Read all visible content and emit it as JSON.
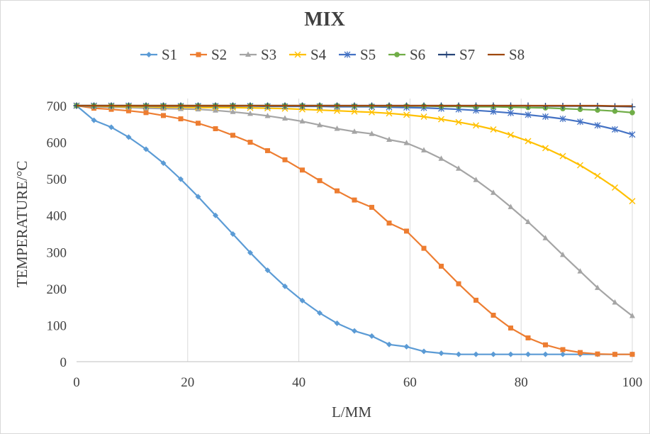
{
  "chart_data": {
    "type": "line",
    "title": "MIX",
    "xlabel": "L/MM",
    "ylabel": "TEMPERATURE/°C",
    "xlim": [
      0,
      100
    ],
    "ylim": [
      0,
      700
    ],
    "xticks": [
      "0",
      "20",
      "40",
      "60",
      "80",
      "100"
    ],
    "yticks": [
      "0",
      "100",
      "200",
      "300",
      "400",
      "500",
      "600",
      "700"
    ],
    "grid": "vertical",
    "legend": "top",
    "x": [
      0,
      3.125,
      6.25,
      9.375,
      12.5,
      15.625,
      18.75,
      21.875,
      25,
      28.125,
      31.25,
      34.375,
      37.5,
      40.625,
      43.75,
      46.875,
      50,
      53.125,
      56.25,
      59.375,
      62.5,
      65.625,
      68.75,
      71.875,
      75,
      78.125,
      81.25,
      84.375,
      87.5,
      90.625,
      93.75,
      96.875,
      100
    ],
    "series": [
      {
        "name": "S1",
        "color": "#5b9bd5",
        "marker": "diamond",
        "values": [
          700,
          660,
          641,
          614,
          581,
          543,
          499,
          451,
          400,
          349,
          298,
          250,
          206,
          167,
          133,
          105,
          84,
          70,
          47,
          41,
          28,
          23,
          20,
          20,
          20,
          20,
          20,
          20,
          20,
          20,
          20,
          20,
          20
        ]
      },
      {
        "name": "S2",
        "color": "#ed7d31",
        "marker": "square",
        "values": [
          700,
          693,
          690,
          686,
          681,
          673,
          664,
          652,
          637,
          619,
          600,
          577,
          552,
          524,
          495,
          467,
          442,
          422,
          379,
          357,
          310,
          261,
          213,
          168,
          127,
          92,
          65,
          46,
          33,
          25,
          21,
          20,
          20
        ]
      },
      {
        "name": "S3",
        "color": "#a5a5a5",
        "marker": "triangle",
        "values": [
          700,
          697,
          696,
          695,
          693,
          692,
          691,
          690,
          687,
          683,
          678,
          672,
          665,
          657,
          647,
          637,
          629,
          623,
          607,
          598,
          578,
          555,
          528,
          497,
          462,
          423,
          382,
          338,
          292,
          247,
          202,
          162,
          125
        ]
      },
      {
        "name": "S4",
        "color": "#ffc000",
        "marker": "x",
        "values": [
          700,
          699,
          698,
          697,
          697,
          696,
          696,
          695,
          695,
          695,
          694,
          693,
          692,
          690,
          688,
          686,
          684,
          682,
          679,
          675,
          670,
          663,
          655,
          646,
          635,
          620,
          603,
          584,
          562,
          537,
          508,
          476,
          439
        ]
      },
      {
        "name": "S5",
        "color": "#4472c4",
        "marker": "asterisk",
        "values": [
          700,
          700,
          700,
          700,
          699,
          699,
          699,
          699,
          699,
          699,
          699,
          698,
          698,
          698,
          698,
          697,
          697,
          697,
          696,
          695,
          694,
          692,
          690,
          687,
          684,
          680,
          675,
          670,
          664,
          656,
          646,
          635,
          621
        ]
      },
      {
        "name": "S6",
        "color": "#70ad47",
        "marker": "circle",
        "values": [
          700,
          700,
          700,
          700,
          700,
          700,
          700,
          700,
          700,
          700,
          700,
          700,
          700,
          700,
          700,
          700,
          699,
          699,
          699,
          699,
          699,
          698,
          698,
          697,
          697,
          696,
          695,
          694,
          692,
          690,
          688,
          685,
          681
        ]
      },
      {
        "name": "S7",
        "color": "#264478",
        "marker": "plus",
        "values": [
          700,
          700,
          700,
          700,
          700,
          700,
          700,
          700,
          700,
          700,
          700,
          700,
          700,
          700,
          700,
          700,
          700,
          700,
          700,
          700,
          700,
          700,
          700,
          700,
          700,
          700,
          700,
          699,
          699,
          699,
          699,
          698,
          697
        ]
      },
      {
        "name": "S8",
        "color": "#9e480e",
        "marker": "none",
        "values": [
          700,
          700,
          700,
          700,
          700,
          700,
          700,
          700,
          700,
          700,
          700,
          700,
          700,
          700,
          700,
          700,
          700,
          700,
          700,
          700,
          700,
          700,
          700,
          700,
          700,
          700,
          700,
          700,
          700,
          700,
          700,
          699,
          699
        ]
      }
    ]
  }
}
